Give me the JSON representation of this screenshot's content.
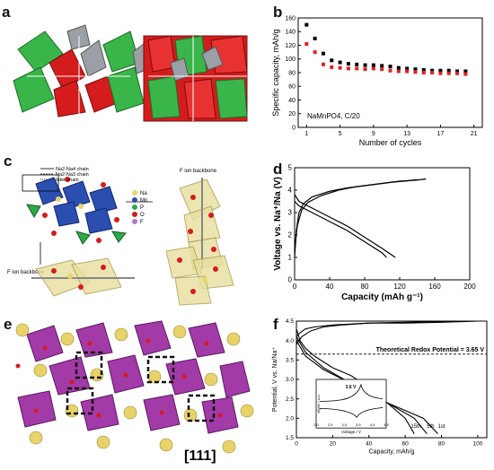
{
  "panels": {
    "a": {
      "label": "a"
    },
    "b": {
      "label": "b"
    },
    "c": {
      "label": "c",
      "legend": [
        "Na2-Na4 chain",
        "Na2-Na3 chain",
        "Inter chain"
      ],
      "atoms": [
        "Na",
        "Mn",
        "P",
        "O",
        "F"
      ],
      "backbone_labels": [
        "F ion backbone",
        "F ion backbone"
      ]
    },
    "d": {
      "label": "d"
    },
    "e": {
      "label": "e",
      "direction": "[111]"
    },
    "f": {
      "label": "f",
      "redox_note": "Theoretical Redox Potential = 3.65 V",
      "cycle_labels": [
        "15th",
        "5th",
        "1st"
      ],
      "inset_peak": "3.6 V",
      "inset_xlabel": "Voltage / V",
      "inset_ylabel": "dQ/dV / a.u."
    }
  },
  "chart_data": [
    {
      "id": "b",
      "type": "scatter",
      "annotation": "NaMnPO4, C/20",
      "xlabel": "Number of cycles",
      "ylabel": "Specific capacity, mAh/g",
      "xlim": [
        0,
        22
      ],
      "ylim": [
        0,
        160
      ],
      "xticks": [
        1,
        5,
        9,
        13,
        17,
        21
      ],
      "yticks": [
        0,
        20,
        40,
        60,
        80,
        100,
        120,
        140,
        160
      ],
      "series": [
        {
          "color": "#000000",
          "x": [
            1,
            2,
            3,
            4,
            5,
            6,
            7,
            8,
            9,
            10,
            11,
            12,
            13,
            14,
            15,
            16,
            17,
            18,
            19,
            20
          ],
          "y": [
            150,
            130,
            108,
            98,
            95,
            93,
            92,
            91,
            91,
            90,
            89,
            87,
            86,
            85,
            84,
            83,
            83,
            83,
            82,
            82
          ]
        },
        {
          "color": "#e02020",
          "x": [
            1,
            2,
            3,
            4,
            5,
            6,
            7,
            8,
            9,
            10,
            11,
            12,
            13,
            14,
            15,
            16,
            17,
            18,
            19,
            20
          ],
          "y": [
            122,
            110,
            92,
            88,
            87,
            86,
            86,
            85,
            86,
            85,
            83,
            82,
            82,
            81,
            80,
            80,
            79,
            79,
            79,
            78
          ]
        }
      ]
    },
    {
      "id": "d",
      "type": "line",
      "xlabel": "Capacity (mAh g⁻¹)",
      "ylabel": "Voltage vs. Na⁺/Na (V)",
      "xlim": [
        0,
        200
      ],
      "ylim": [
        0,
        5
      ],
      "xticks": [
        0,
        40,
        80,
        120,
        160,
        200
      ],
      "yticks": [
        0,
        1,
        2,
        3,
        4,
        5
      ],
      "series": [
        {
          "x": [
            0,
            2,
            5,
            10,
            20,
            40,
            60,
            80,
            100,
            120,
            140,
            150
          ],
          "y": [
            1.0,
            2.2,
            3.0,
            3.4,
            3.7,
            3.95,
            4.1,
            4.2,
            4.3,
            4.4,
            4.45,
            4.5
          ]
        },
        {
          "x": [
            0,
            3,
            8,
            15,
            30,
            50,
            70,
            90,
            110,
            130,
            140
          ],
          "y": [
            1.3,
            2.4,
            3.1,
            3.45,
            3.75,
            4.0,
            4.15,
            4.25,
            4.35,
            4.42,
            4.47
          ]
        },
        {
          "x": [
            0,
            5,
            20,
            40,
            60,
            80,
            100,
            115
          ],
          "y": [
            3.8,
            3.5,
            3.2,
            2.8,
            2.4,
            1.9,
            1.4,
            1.0
          ]
        },
        {
          "x": [
            0,
            5,
            20,
            40,
            60,
            80,
            100,
            105
          ],
          "y": [
            3.5,
            3.3,
            3.0,
            2.6,
            2.2,
            1.7,
            1.2,
            1.0
          ]
        }
      ]
    },
    {
      "id": "f",
      "type": "line",
      "xlabel": "Capacity, mAh/g",
      "ylabel": "Potential, V vs. Na/Na⁺",
      "xlim": [
        0,
        105
      ],
      "ylim": [
        1.5,
        4.5
      ],
      "xticks": [
        0,
        20,
        40,
        60,
        80,
        100
      ],
      "yticks": [
        1.5,
        2.0,
        2.5,
        3.0,
        3.5,
        4.0,
        4.5
      ],
      "series": [
        {
          "x": [
            0,
            2,
            5,
            10,
            20,
            40,
            60,
            80,
            100,
            105
          ],
          "y": [
            4.1,
            4.2,
            4.3,
            4.35,
            4.4,
            4.45,
            4.45,
            4.47,
            4.5,
            4.5
          ]
        },
        {
          "x": [
            0,
            3,
            8,
            15,
            25,
            40,
            60,
            80,
            100
          ],
          "y": [
            3.9,
            4.1,
            4.25,
            4.35,
            4.4,
            4.45,
            4.47,
            4.49,
            4.5
          ]
        },
        {
          "x": [
            0,
            2,
            5,
            10,
            20,
            30,
            40,
            50,
            60,
            65
          ],
          "y": [
            4.3,
            4.0,
            3.8,
            3.6,
            3.3,
            3.1,
            2.8,
            2.4,
            2.0,
            1.6
          ]
        },
        {
          "x": [
            0,
            5,
            15,
            30,
            50,
            65,
            72
          ],
          "y": [
            4.1,
            3.7,
            3.3,
            2.9,
            2.4,
            2.0,
            1.6
          ]
        },
        {
          "x": [
            0,
            5,
            15,
            30,
            50,
            70,
            78
          ],
          "y": [
            4.0,
            3.6,
            3.25,
            2.9,
            2.4,
            2.0,
            1.6
          ]
        }
      ],
      "inset": {
        "xlim": [
          2.0,
          4.5
        ],
        "xticks": [
          2.0,
          2.5,
          3.0,
          3.5,
          4.0,
          4.5
        ]
      }
    }
  ]
}
